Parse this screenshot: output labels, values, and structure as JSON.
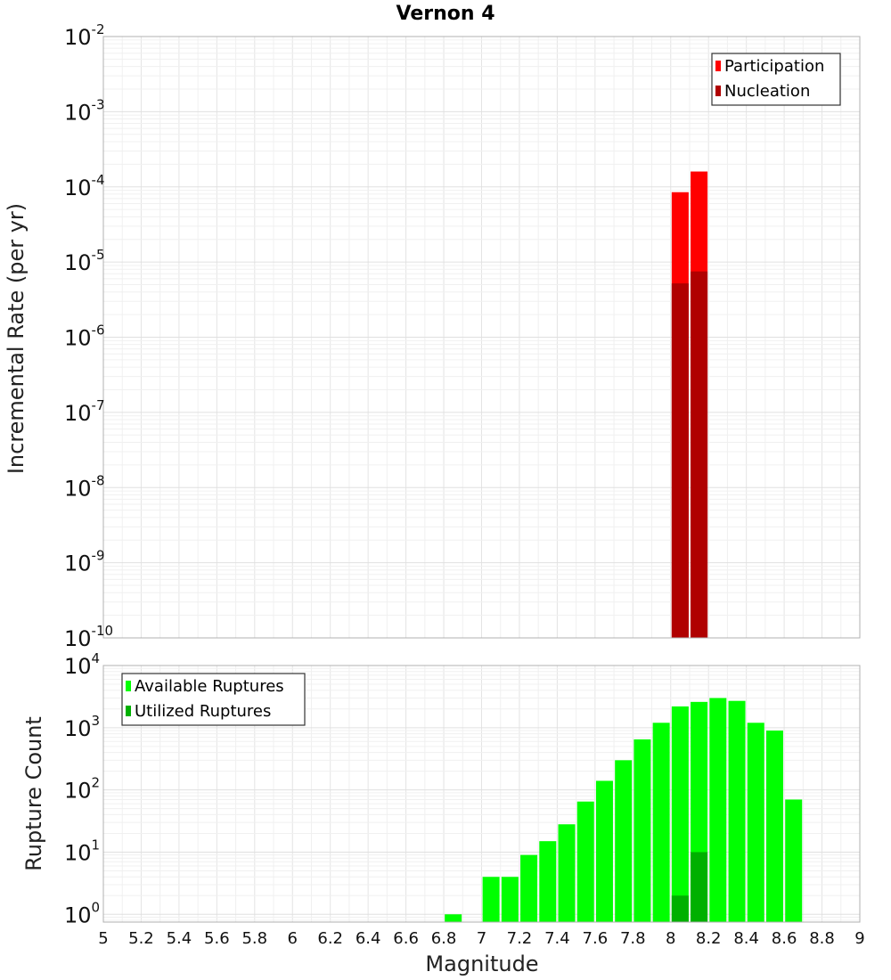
{
  "chart_data": [
    {
      "type": "bar",
      "title": "Vernon 4",
      "ylabel": "Incremental Rate (per yr)",
      "xlabel": "",
      "yscale": "log",
      "ylim": [
        1e-10,
        0.01
      ],
      "xlim": [
        5,
        9
      ],
      "yticks": [
        {
          "base": "10",
          "exp": "-10",
          "value": 1e-10
        },
        {
          "base": "10",
          "exp": "-9",
          "value": 1e-09
        },
        {
          "base": "10",
          "exp": "-8",
          "value": 1e-08
        },
        {
          "base": "10",
          "exp": "-7",
          "value": 1e-07
        },
        {
          "base": "10",
          "exp": "-6",
          "value": 1e-06
        },
        {
          "base": "10",
          "exp": "-5",
          "value": 1e-05
        },
        {
          "base": "10",
          "exp": "-4",
          "value": 0.0001
        },
        {
          "base": "10",
          "exp": "-3",
          "value": 0.001
        },
        {
          "base": "10",
          "exp": "-2",
          "value": 0.01
        }
      ],
      "legend_position": "top-right",
      "series": [
        {
          "name": "Participation",
          "color": "#ff0000",
          "x": [
            8.05,
            8.15
          ],
          "values": [
            8.5e-05,
            0.00016
          ]
        },
        {
          "name": "Nucleation",
          "color": "#b00000",
          "x": [
            8.05,
            8.15
          ],
          "values": [
            5.2e-06,
            7.5e-06
          ]
        }
      ]
    },
    {
      "type": "bar",
      "title": "",
      "ylabel": "Rupture Count",
      "xlabel": "Magnitude",
      "yscale": "log",
      "ylim": [
        0.75,
        10000
      ],
      "xlim": [
        5,
        9
      ],
      "yticks": [
        {
          "base": "10",
          "exp": "0",
          "value": 1
        },
        {
          "base": "10",
          "exp": "1",
          "value": 10
        },
        {
          "base": "10",
          "exp": "2",
          "value": 100
        },
        {
          "base": "10",
          "exp": "3",
          "value": 1000
        },
        {
          "base": "10",
          "exp": "4",
          "value": 10000
        }
      ],
      "xticks": [
        "5",
        "5.2",
        "5.4",
        "5.6",
        "5.8",
        "6",
        "6.2",
        "6.4",
        "6.6",
        "6.8",
        "7",
        "7.2",
        "7.4",
        "7.6",
        "7.8",
        "8",
        "8.2",
        "8.4",
        "8.6",
        "8.8",
        "9"
      ],
      "legend_position": "top-left",
      "series": [
        {
          "name": "Available Ruptures",
          "color": "#00ff00",
          "x": [
            6.85,
            7.05,
            7.15,
            7.25,
            7.35,
            7.45,
            7.55,
            7.65,
            7.75,
            7.85,
            7.95,
            8.05,
            8.15,
            8.25,
            8.35,
            8.45,
            8.55,
            8.65
          ],
          "values": [
            1,
            4,
            4,
            9,
            15,
            28,
            65,
            140,
            300,
            650,
            1200,
            2200,
            2600,
            3000,
            2700,
            1200,
            900,
            70
          ]
        },
        {
          "name": "Utilized Ruptures",
          "color": "#00b000",
          "x": [
            8.05,
            8.15
          ],
          "values": [
            2,
            10
          ]
        }
      ]
    }
  ]
}
